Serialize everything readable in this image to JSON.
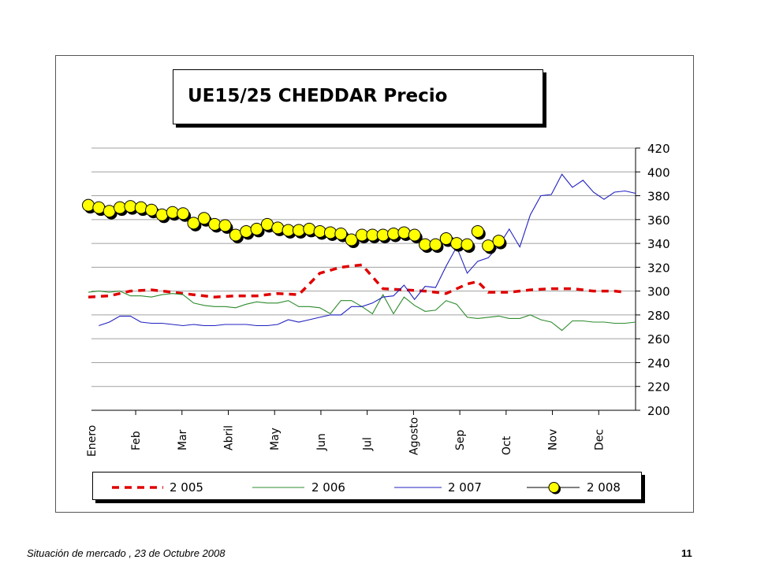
{
  "footer": {
    "caption": "Situación de mercado , 23 de  Octubre 2008",
    "page_number": "11"
  },
  "chart_data": {
    "type": "line",
    "title": "UE15/25 CHEDDAR Precio",
    "xlabel": "",
    "ylabel": "",
    "ylim": [
      200,
      420
    ],
    "yticks": [
      200,
      220,
      240,
      260,
      280,
      300,
      320,
      340,
      360,
      380,
      400,
      420
    ],
    "y_axis_side": "right",
    "grid": "horizontal",
    "legend_placement": "bottom",
    "x_unit": "week",
    "xlim": [
      1,
      53
    ],
    "months": [
      {
        "label": "Enero",
        "week": 1
      },
      {
        "label": "Feb",
        "week": 5.5
      },
      {
        "label": "Mar",
        "week": 9.9
      },
      {
        "label": "Abril",
        "week": 14.3
      },
      {
        "label": "May",
        "week": 18.7
      },
      {
        "label": "Jun",
        "week": 23.1
      },
      {
        "label": "Jul",
        "week": 27.5
      },
      {
        "label": "Agosto",
        "week": 31.9
      },
      {
        "label": "Sep",
        "week": 36.3
      },
      {
        "label": "Oct",
        "week": 40.7
      },
      {
        "label": "Nov",
        "week": 45.1
      },
      {
        "label": "Dec",
        "week": 49.5
      }
    ],
    "series": [
      {
        "name": "2 005",
        "color": "#e00000",
        "style": "dashed-thick",
        "x": [
          1,
          3,
          5,
          7,
          9,
          11,
          13,
          15,
          17,
          19,
          21,
          23,
          25,
          27,
          29,
          31,
          33,
          35,
          37,
          38,
          39,
          41,
          43,
          45,
          47,
          49,
          51,
          52
        ],
        "values": [
          295,
          296,
          300,
          301,
          299,
          297,
          295,
          296,
          296,
          298,
          297,
          315,
          320,
          322,
          302,
          301,
          300,
          298,
          306,
          308,
          299,
          299,
          301,
          302,
          302,
          300,
          300,
          299
        ]
      },
      {
        "name": "2 006",
        "color": "#2e8b2e",
        "style": "thin",
        "x": [
          1,
          2,
          3,
          4,
          5,
          6,
          7,
          8,
          9,
          10,
          11,
          12,
          13,
          14,
          15,
          16,
          17,
          18,
          19,
          20,
          21,
          22,
          23,
          24,
          25,
          26,
          27,
          28,
          29,
          30,
          31,
          32,
          33,
          34,
          35,
          36,
          37,
          38,
          39,
          40,
          41,
          42,
          43,
          44,
          45,
          46,
          47,
          48,
          49,
          50,
          51,
          52,
          53
        ],
        "values": [
          299,
          300,
          299,
          300,
          296,
          296,
          295,
          297,
          298,
          297,
          290,
          288,
          287,
          287,
          286,
          289,
          291,
          290,
          290,
          292,
          287,
          287,
          286,
          281,
          292,
          292,
          287,
          281,
          297,
          281,
          295,
          288,
          283,
          284,
          292,
          289,
          278,
          277,
          278,
          279,
          277,
          277,
          280,
          276,
          274,
          267,
          275,
          275,
          274,
          274,
          273,
          273,
          274
        ]
      },
      {
        "name": "2 007",
        "color": "#2020c0",
        "style": "thin",
        "x": [
          2,
          3,
          4,
          5,
          6,
          7,
          8,
          9,
          10,
          11,
          12,
          13,
          14,
          15,
          16,
          17,
          18,
          19,
          20,
          21,
          22,
          23,
          24,
          25,
          26,
          27,
          28,
          29,
          30,
          31,
          32,
          33,
          34,
          35,
          36,
          37,
          38,
          39,
          40,
          41,
          42,
          43,
          44,
          45,
          46,
          47,
          48,
          49,
          50,
          51,
          52,
          53
        ],
        "values": [
          271,
          274,
          279,
          279,
          274,
          273,
          273,
          272,
          271,
          272,
          271,
          271,
          272,
          272,
          272,
          271,
          271,
          272,
          276,
          274,
          276,
          278,
          280,
          280,
          287,
          287,
          290,
          295,
          296,
          305,
          293,
          304,
          303,
          321,
          337,
          315,
          325,
          328,
          338,
          352,
          337,
          364,
          380,
          381,
          398,
          387,
          393,
          383,
          377,
          383,
          384,
          382
        ]
      },
      {
        "name": "2 008",
        "color": "#000000",
        "marker_color": "#ffff00",
        "style": "markers",
        "x": [
          1,
          2,
          3,
          4,
          5,
          6,
          7,
          8,
          9,
          10,
          11,
          12,
          13,
          14,
          15,
          16,
          17,
          18,
          19,
          20,
          21,
          22,
          23,
          24,
          25,
          26,
          27,
          28,
          29,
          30,
          31,
          32,
          33,
          34,
          35,
          36,
          37,
          38,
          39,
          40
        ],
        "values": [
          372,
          370,
          367,
          370,
          371,
          370,
          368,
          364,
          366,
          365,
          357,
          361,
          356,
          355,
          347,
          350,
          352,
          356,
          353,
          351,
          351,
          352,
          350,
          349,
          348,
          343,
          347,
          347,
          347,
          348,
          349,
          347,
          339,
          339,
          344,
          340,
          339,
          350,
          338,
          342
        ]
      }
    ]
  }
}
